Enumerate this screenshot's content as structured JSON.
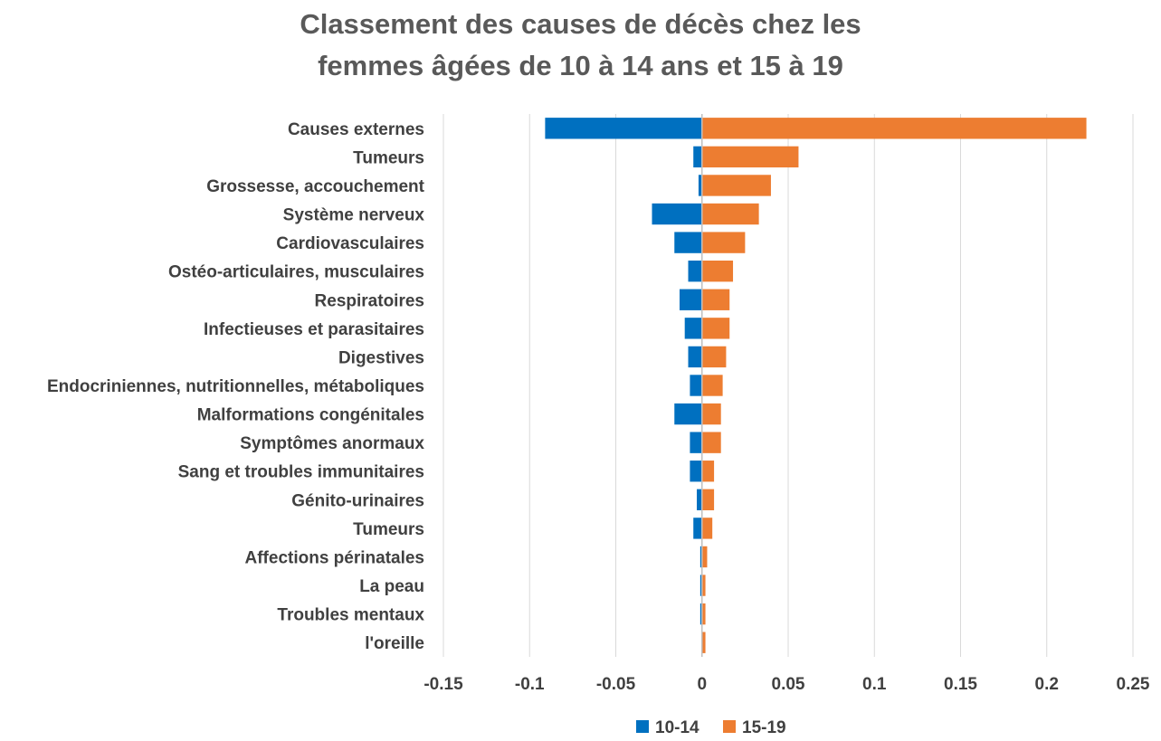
{
  "chart_data": {
    "type": "bar",
    "orientation": "horizontal",
    "title": [
      "Classement des causes de décès chez les",
      "femmes âgées de 10 à 14 ans et 15 à 19"
    ],
    "categories": [
      "Causes externes",
      "Tumeurs",
      "Grossesse, accouchement",
      "Système nerveux",
      "Cardiovasculaires",
      "Ostéo-articulaires, musculaires",
      "Respiratoires",
      "Infectieuses et parasitaires",
      "Digestives",
      "Endocriniennes, nutritionnelles, métaboliques",
      "Malformations congénitales",
      "Symptômes anormaux",
      "Sang et troubles immunitaires",
      "Génito-urinaires",
      "Tumeurs",
      "Affections périnatales",
      "La peau",
      "Troubles mentaux",
      "l'oreille"
    ],
    "series": [
      {
        "name": "10-14",
        "color": "#0070C0",
        "values": [
          -0.091,
          -0.005,
          -0.002,
          -0.029,
          -0.016,
          -0.008,
          -0.013,
          -0.01,
          -0.008,
          -0.007,
          -0.016,
          -0.007,
          -0.007,
          -0.003,
          -0.005,
          -0.001,
          -0.001,
          -0.001,
          0
        ]
      },
      {
        "name": "15-19",
        "color": "#ED7D31",
        "values": [
          0.223,
          0.056,
          0.04,
          0.033,
          0.025,
          0.018,
          0.016,
          0.016,
          0.014,
          0.012,
          0.011,
          0.011,
          0.007,
          0.007,
          0.006,
          0.003,
          0.002,
          0.002,
          0.002
        ]
      }
    ],
    "xlim": [
      -0.15,
      0.25
    ],
    "xticks": [
      -0.15,
      -0.1,
      -0.05,
      0,
      0.05,
      0.1,
      0.15,
      0.2,
      0.25
    ],
    "xtick_labels": [
      "-0.15",
      "-0.1",
      "-0.05",
      "0",
      "0.05",
      "0.1",
      "0.15",
      "0.2",
      "0.25"
    ],
    "grid": "vertical",
    "legend_position": "bottom"
  }
}
